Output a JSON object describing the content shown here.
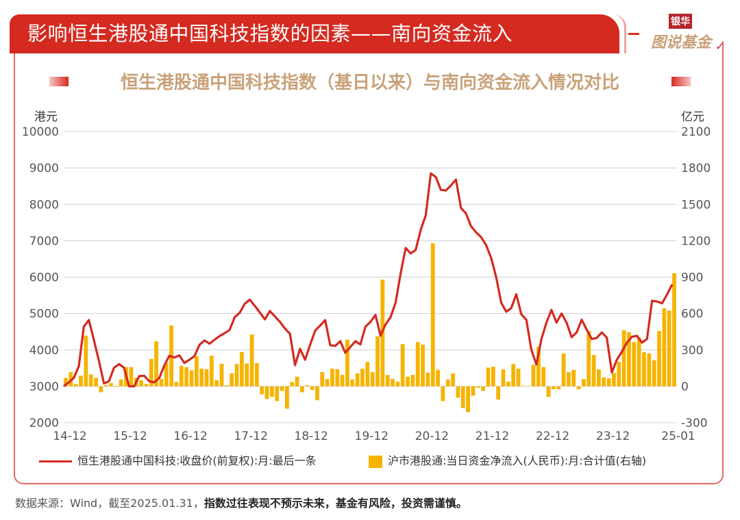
{
  "header": {
    "title": "影响恒生港股通中国科技指数的因素——南向资金流入",
    "logo_top": "银华",
    "logo_main": "图说基金"
  },
  "chart_data": {
    "type": "bar+line",
    "title": "恒生港股通中国科技指数（基日以来）与南向资金流入情况对比",
    "ylabel_left": "港元",
    "ylabel_right": "亿元",
    "ylim_left": [
      2000,
      10000
    ],
    "ylim_right": [
      -300,
      2100
    ],
    "yticks_left": [
      "10000",
      "9000",
      "8000",
      "7000",
      "6000",
      "5000",
      "4000",
      "3000",
      "2000"
    ],
    "yticks_right": [
      "2100",
      "1800",
      "1500",
      "1200",
      "900",
      "600",
      "300",
      "0",
      "-300"
    ],
    "xticks": [
      {
        "label": "14-12",
        "index": 0
      },
      {
        "label": "15-12",
        "index": 12
      },
      {
        "label": "16-12",
        "index": 24
      },
      {
        "label": "17-12",
        "index": 36
      },
      {
        "label": "18-12",
        "index": 48
      },
      {
        "label": "19-12",
        "index": 60
      },
      {
        "label": "20-12",
        "index": 72
      },
      {
        "label": "21-12",
        "index": 84
      },
      {
        "label": "22-12",
        "index": 96
      },
      {
        "label": "23-12",
        "index": 108
      },
      {
        "label": "25-01",
        "index": 121
      }
    ],
    "x_start": "2014-12",
    "x_end": "2025-01",
    "grid": true,
    "legend_position": "bottom",
    "series": [
      {
        "name": "恒生港股通中国科技:收盘价(前复权):月:最后一条",
        "type": "line",
        "axis": "left",
        "color": "#d42a20",
        "values": [
          3000,
          3110,
          3230,
          3550,
          4640,
          4820,
          4270,
          3700,
          3080,
          3140,
          3510,
          3610,
          3510,
          3000,
          3000,
          3280,
          3290,
          3140,
          3110,
          3230,
          3570,
          3840,
          3790,
          3850,
          3640,
          3730,
          3830,
          4140,
          4260,
          4170,
          4280,
          4380,
          4460,
          4550,
          4900,
          5020,
          5270,
          5380,
          5210,
          5030,
          4840,
          5070,
          4920,
          4770,
          4590,
          4440,
          3580,
          4030,
          3730,
          4140,
          4530,
          4670,
          4820,
          4130,
          4110,
          4240,
          3920,
          4080,
          4240,
          4150,
          4640,
          4770,
          4960,
          4390,
          4700,
          4900,
          5300,
          6100,
          6800,
          6650,
          6750,
          7300,
          7700,
          8850,
          8750,
          8400,
          8380,
          8520,
          8680,
          7900,
          7750,
          7400,
          7230,
          7100,
          6880,
          6530,
          6000,
          5300,
          5050,
          5150,
          5530,
          4980,
          4830,
          4000,
          3600,
          4300,
          4750,
          5100,
          4750,
          5000,
          4750,
          4350,
          4480,
          4830,
          4560,
          4300,
          4330,
          4480,
          4340,
          3380,
          3730,
          3950,
          4200,
          4360,
          4390,
          4200,
          4300,
          5350,
          5330,
          5280,
          5530,
          5800
        ]
      },
      {
        "name": "沪市港股通:当日资金净流入(人民币):月:合计值(右轴)",
        "type": "bar",
        "axis": "right",
        "color": "#f5b400",
        "values": [
          70,
          117,
          19,
          88,
          418,
          98,
          70,
          -49,
          10,
          26,
          -5,
          56,
          158,
          158,
          70,
          50,
          19,
          226,
          371,
          60,
          192,
          502,
          36,
          169,
          158,
          132,
          248,
          145,
          141,
          252,
          50,
          186,
          9,
          107,
          183,
          282,
          188,
          427,
          192,
          -66,
          -105,
          -87,
          -122,
          -38,
          -184,
          36,
          79,
          -49,
          9,
          -30,
          -115,
          117,
          60,
          145,
          141,
          94,
          384,
          56,
          107,
          145,
          201,
          117,
          412,
          879,
          94,
          60,
          38,
          348,
          79,
          94,
          365,
          343,
          113,
          1180,
          136,
          -122,
          56,
          107,
          -94,
          -179,
          -213,
          -77,
          -11,
          -38,
          154,
          162,
          -109,
          139,
          38,
          184,
          145,
          4,
          0,
          177,
          327,
          158,
          -87,
          -24,
          -24,
          271,
          117,
          136,
          -24,
          60,
          455,
          258,
          139,
          73,
          66,
          110,
          201,
          461,
          446,
          365,
          403,
          282,
          271,
          215,
          455,
          644,
          625,
          932
        ]
      }
    ]
  },
  "footer": {
    "source": "数据来源：Wind，截至2025.01.31，",
    "disclaimer": "指数过往表现不预示未来，基金有风险，投资需谨慎。"
  }
}
